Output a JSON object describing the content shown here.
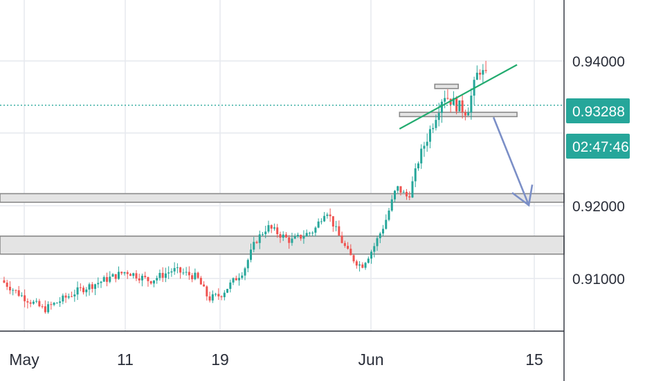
{
  "chart_data": {
    "type": "candlestick",
    "y_ticks": [
      "0.94000",
      "0.92000",
      "0.91000"
    ],
    "y_tick_values": [
      0.94,
      0.92,
      0.91
    ],
    "y_range": [
      0.9015,
      0.9475
    ],
    "x_ticks": [
      "May",
      "11",
      "19",
      "Jun",
      "15"
    ],
    "x_tick_dates": [
      "2020-05-01",
      "2020-05-11",
      "2020-05-19",
      "2020-06-01",
      "2020-06-15"
    ],
    "x_range": [
      "2020-04-30",
      "2020-06-17"
    ],
    "current_price": {
      "label": "0.93288",
      "value": 0.93288
    },
    "countdown": {
      "label": "02:47:46"
    },
    "last_candle_date": "2020-06-10",
    "zones": [
      {
        "name": "support-zone-0.920",
        "low": 0.9194,
        "high": 0.9206
      },
      {
        "name": "support-zone-0.914",
        "low": 0.9122,
        "high": 0.9147
      },
      {
        "name": "neckline-zone",
        "low": 0.9313,
        "high": 0.9319,
        "from": "2020-06-03",
        "to": "2020-06-13"
      },
      {
        "name": "resistance-box",
        "low": 0.9352,
        "high": 0.9358,
        "from": "2020-06-06",
        "to": "2020-06-08"
      }
    ],
    "trendline": {
      "from": {
        "date": "2020-06-03",
        "price": 0.9296
      },
      "to": {
        "date": "2020-06-13",
        "price": 0.9385
      }
    },
    "projection_arrow": {
      "from": {
        "date": "2020-06-11",
        "price": 0.9312
      },
      "to": {
        "date": "2020-06-14",
        "price": 0.919
      }
    },
    "colors": {
      "up": "#26a69a",
      "down": "#ef5350",
      "trendline": "#22ab6f",
      "arrow": "#7b8fc7",
      "price_badge": "#26a69a",
      "price_line": "#26a69a",
      "zone_fill": "#e4e4e4",
      "zone_border": "#8a8a8a",
      "grid": "#e6e9ee"
    }
  }
}
